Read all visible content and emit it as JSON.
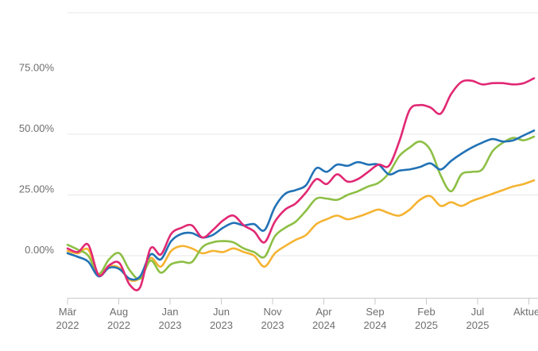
{
  "chart_data": {
    "type": "line",
    "title": "",
    "legend_position": "none",
    "grid": "horizontal",
    "y_axis": {
      "labels": [
        "75.00%",
        "50.00%",
        "25.00%",
        "0.00%"
      ],
      "values": [
        75,
        50,
        25,
        0
      ],
      "gridlines_pct": [
        100,
        50,
        25,
        0
      ],
      "range_shown": [
        -18,
        101
      ]
    },
    "x_axis": {
      "ticks": [
        {
          "month": "Mär",
          "year": "2022"
        },
        {
          "month": "Aug",
          "year": "2022"
        },
        {
          "month": "Jan",
          "year": "2023"
        },
        {
          "month": "Jun",
          "year": "2023"
        },
        {
          "month": "Nov",
          "year": "2023"
        },
        {
          "month": "Apr",
          "year": "2024"
        },
        {
          "month": "Sep",
          "year": "2024"
        },
        {
          "month": "Feb",
          "year": "2025"
        },
        {
          "month": "Jul",
          "year": "2025"
        },
        {
          "month": "Aktuell",
          "year": ""
        }
      ]
    },
    "series": [
      {
        "name": "yellow",
        "color": "#f5b331",
        "values": [
          2,
          1,
          2.5,
          -8,
          -4.5,
          -5,
          -10,
          -9,
          -1,
          -4.5,
          2,
          4,
          3,
          1,
          2,
          1.5,
          3,
          1.5,
          0,
          -4.5,
          1,
          4,
          6.5,
          8.5,
          13,
          15,
          16.5,
          15,
          16,
          17.5,
          19,
          17.5,
          16.5,
          19,
          23,
          24.5,
          20.5,
          22,
          20.5,
          22.5,
          24,
          25.5,
          27,
          28.5,
          29.5,
          31
        ]
      },
      {
        "name": "green",
        "color": "#8dbf45",
        "values": [
          4.5,
          2.5,
          0,
          -7.5,
          -1.5,
          1,
          -6,
          -9.5,
          -2,
          -7,
          -3.5,
          -2.5,
          -2.6,
          3.5,
          5.5,
          6,
          5.5,
          3,
          1.5,
          -0.5,
          8,
          11.5,
          14,
          18.5,
          23.5,
          23.5,
          23,
          25,
          26.5,
          28.5,
          30,
          34,
          41,
          44.5,
          47,
          43.5,
          33,
          26.5,
          33.5,
          34.5,
          35.5,
          43,
          46.5,
          48.5,
          47.5,
          49
        ]
      },
      {
        "name": "blue",
        "color": "#2272b6",
        "values": [
          1,
          -0.5,
          -2.5,
          -8.5,
          -5,
          -5.5,
          -9.5,
          -8.5,
          0.5,
          -1.5,
          6,
          9,
          9.3,
          7.5,
          8.5,
          11.5,
          13.5,
          12.5,
          13,
          10.5,
          20,
          25.5,
          27,
          29,
          36,
          34.5,
          37.5,
          37,
          38.5,
          37.5,
          37.5,
          33.5,
          35,
          35.5,
          36.5,
          38,
          35.5,
          39,
          42,
          44.5,
          46.5,
          48,
          47,
          47.5,
          49.5,
          51.5
        ]
      },
      {
        "name": "magenta",
        "color": "#e12873",
        "values": [
          3,
          1.5,
          4.5,
          -8,
          -4,
          -3,
          -12,
          -13,
          3,
          0.5,
          9,
          11.5,
          12.5,
          7.5,
          10.5,
          14.5,
          16.5,
          12.5,
          10,
          5.5,
          14,
          19,
          21.5,
          26,
          31.5,
          29.5,
          33.5,
          30.5,
          31.5,
          34.5,
          37.5,
          37,
          47,
          60,
          62,
          61,
          58.5,
          66.5,
          71.5,
          72,
          70.5,
          71,
          71,
          70.5,
          71,
          73
        ]
      }
    ],
    "colors": {
      "gridline": "#e7e7e7",
      "axis_line": "#c9c9c9",
      "tick": "#c9c9c9",
      "label_text": "#6e6e6e",
      "background": "#ffffff"
    }
  }
}
